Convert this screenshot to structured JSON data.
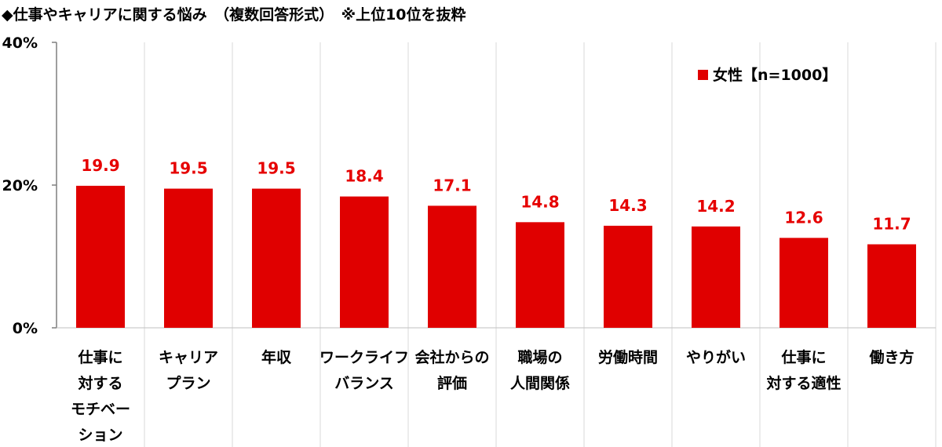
{
  "title": "◆仕事やキャリアに関する悩み　（複数回答形式）　※上位10位を抜粋",
  "chart_data": {
    "type": "bar",
    "title": "◆仕事やキャリアに関する悩み　（複数回答形式）　※上位10位を抜粋",
    "categories": [
      "仕事に対するモチベーション",
      "キャリアプラン",
      "年収",
      "ワークライフバランス",
      "会社からの評価",
      "職場の人間関係",
      "労働時間",
      "やりがい",
      "仕事に対する適性",
      "働き方"
    ],
    "category_lines": [
      [
        "仕事に",
        "対する",
        "モチベー",
        "ション"
      ],
      [
        "キャリア",
        "プラン"
      ],
      [
        "年収"
      ],
      [
        "ワークライフ",
        "バランス"
      ],
      [
        "会社からの",
        "評価"
      ],
      [
        "職場の",
        "人間関係"
      ],
      [
        "労働時間"
      ],
      [
        "やりがい"
      ],
      [
        "仕事に",
        "対する適性"
      ],
      [
        "働き方"
      ]
    ],
    "series": [
      {
        "name": "女性【n=1000】",
        "values": [
          19.9,
          19.5,
          19.5,
          18.4,
          17.1,
          14.8,
          14.3,
          14.2,
          12.6,
          11.7
        ]
      }
    ],
    "value_labels": [
      "19.9",
      "19.5",
      "19.5",
      "18.4",
      "17.1",
      "14.8",
      "14.3",
      "14.2",
      "12.6",
      "11.7"
    ],
    "yticks": [
      "0%",
      "20%",
      "40%"
    ],
    "ytick_values": [
      0,
      20,
      40
    ],
    "ylim": [
      0,
      40
    ],
    "xlabel": "",
    "ylabel": "",
    "legend_position": "top-right",
    "grid": "vertical category separators",
    "bar_color": "#e00000",
    "label_color": "#e60000"
  }
}
